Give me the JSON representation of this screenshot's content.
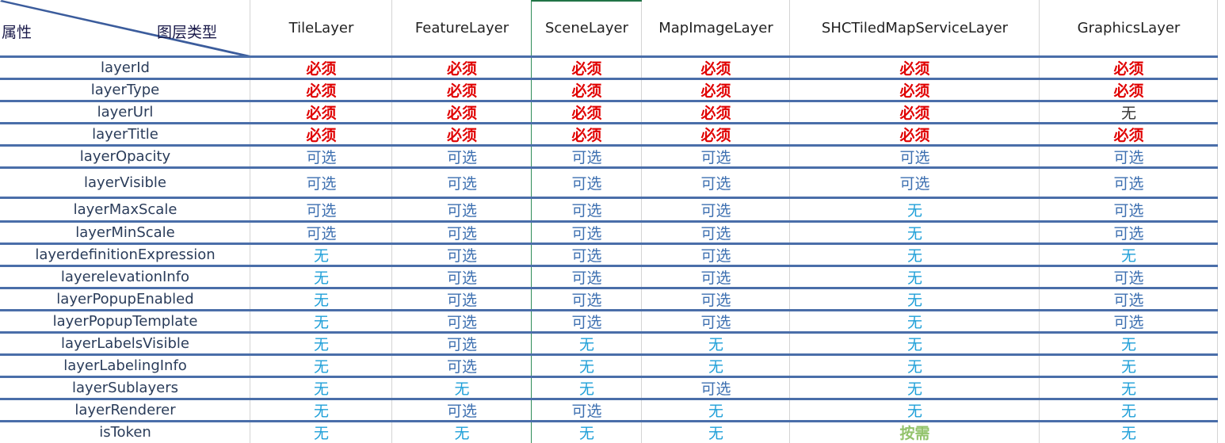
{
  "corner": {
    "attribute": "属性",
    "layer_type": "图层类型"
  },
  "columns": [
    "TileLayer",
    "FeatureLayer",
    "SceneLayer",
    "MapImageLayer",
    "SHCTiledMapServiceLayer",
    "GraphicsLayer"
  ],
  "labels": {
    "required": "必须",
    "optional": "可选",
    "none": "无",
    "on_demand": "按需"
  },
  "colors": {
    "required": "#e00000",
    "optional": "#3d6fb0",
    "none": "#1e9fd8",
    "none_dark": "#333333",
    "on_demand": "#92c36b",
    "divider": "#4a6ea9"
  },
  "rows": [
    {
      "attribute": "layerId",
      "values": [
        "必须",
        "必须",
        "必须",
        "必须",
        "必须",
        "必须"
      ]
    },
    {
      "attribute": "layerType",
      "values": [
        "必须",
        "必须",
        "必须",
        "必须",
        "必须",
        "必须"
      ]
    },
    {
      "attribute": "layerUrl",
      "values": [
        "必须",
        "必须",
        "必须",
        "必须",
        "必须",
        "无"
      ]
    },
    {
      "attribute": "layerTitle",
      "values": [
        "必须",
        "必须",
        "必须",
        "必须",
        "必须",
        "必须"
      ]
    },
    {
      "attribute": "layerOpacity",
      "values": [
        "可选",
        "可选",
        "可选",
        "可选",
        "可选",
        "可选"
      ]
    },
    {
      "attribute": "layerVisible",
      "values": [
        "可选",
        "可选",
        "可选",
        "可选",
        "可选",
        "可选"
      ]
    },
    {
      "attribute": "layerMaxScale",
      "values": [
        "可选",
        "可选",
        "可选",
        "可选",
        "无",
        "可选"
      ]
    },
    {
      "attribute": "layerMinScale",
      "values": [
        "可选",
        "可选",
        "可选",
        "可选",
        "无",
        "可选"
      ]
    },
    {
      "attribute": "layerdefinitionExpression",
      "values": [
        "无",
        "可选",
        "可选",
        "可选",
        "无",
        "无"
      ]
    },
    {
      "attribute": "layerelevationInfo",
      "values": [
        "无",
        "可选",
        "可选",
        "可选",
        "无",
        "可选"
      ]
    },
    {
      "attribute": "layerPopupEnabled",
      "values": [
        "无",
        "可选",
        "可选",
        "可选",
        "无",
        "可选"
      ]
    },
    {
      "attribute": "layerPopupTemplate",
      "values": [
        "无",
        "可选",
        "可选",
        "可选",
        "无",
        "可选"
      ]
    },
    {
      "attribute": "layerLabelsVisible",
      "values": [
        "无",
        "可选",
        "无",
        "无",
        "无",
        "无"
      ]
    },
    {
      "attribute": "layerLabelingInfo",
      "values": [
        "无",
        "可选",
        "无",
        "无",
        "无",
        "无"
      ]
    },
    {
      "attribute": "layerSublayers",
      "values": [
        "无",
        "无",
        "无",
        "可选",
        "无",
        "无"
      ]
    },
    {
      "attribute": "layerRenderer",
      "values": [
        "无",
        "可选",
        "可选",
        "无",
        "无",
        "无"
      ]
    },
    {
      "attribute": "isToken",
      "values": [
        "无",
        "无",
        "无",
        "无",
        "按需",
        "无"
      ]
    }
  ]
}
